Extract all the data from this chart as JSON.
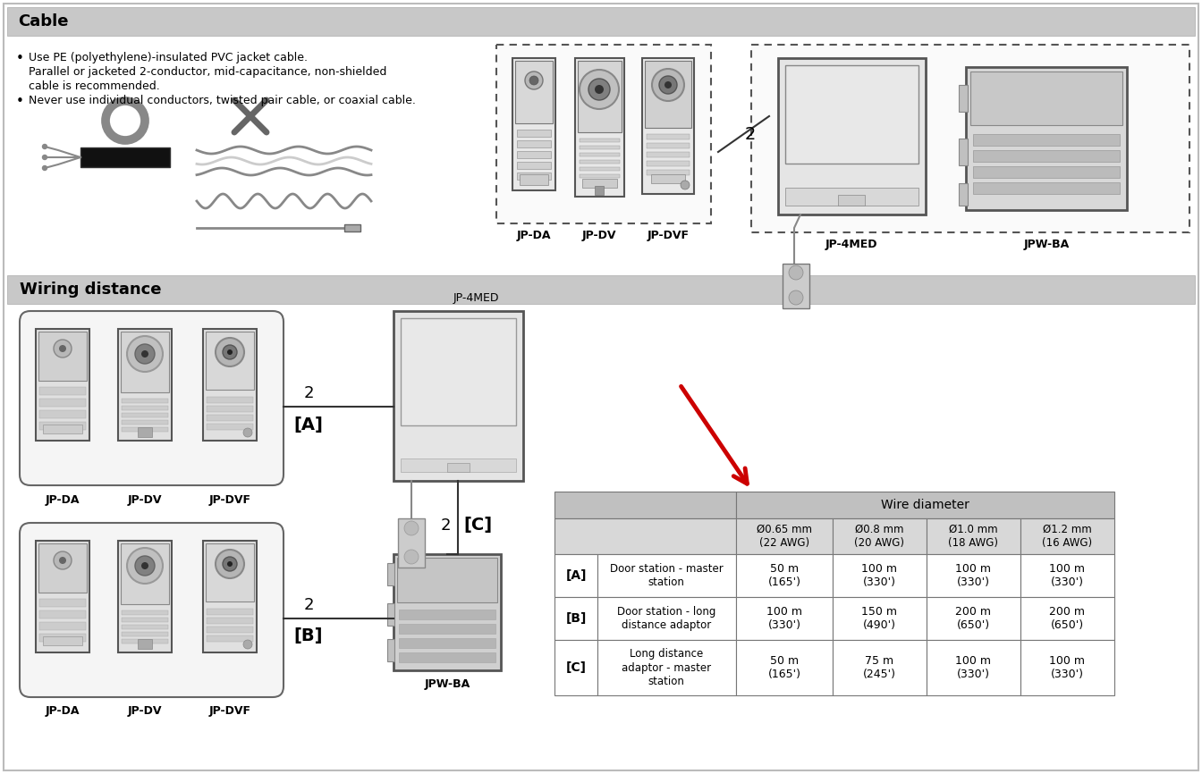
{
  "bg_color": "#ffffff",
  "section_header_bg": "#c8c8c8",
  "cable_title": "Cable",
  "wiring_title": "Wiring distance",
  "bullet1_line1": "Use PE (polyethylene)-insulated PVC jacket cable.",
  "bullet1_line2": "Parallel or jacketed 2-conductor, mid-capacitance, non-shielded",
  "bullet1_line3": "cable is recommended.",
  "bullet2": "Never use individual conductors, twisted pair cable, or coaxial cable.",
  "table_header_bg": "#c0c0c0",
  "table_subheader_bg": "#d8d8d8",
  "table_wire_diameter": "Wire diameter",
  "table_col_headers": [
    "Ø0.65 mm\n(22 AWG)",
    "Ø0.8 mm\n(20 AWG)",
    "Ø1.0 mm\n(18 AWG)",
    "Ø1.2 mm\n(16 AWG)"
  ],
  "table_rows": [
    {
      "label": "[A]",
      "desc": "Door station - master\nstation",
      "vals": [
        "50 m\n(165')",
        "100 m\n(330')",
        "100 m\n(330')",
        "100 m\n(330')"
      ]
    },
    {
      "label": "[B]",
      "desc": "Door station - long\ndistance adaptor",
      "vals": [
        "100 m\n(330')",
        "150 m\n(490')",
        "200 m\n(650')",
        "200 m\n(650')"
      ]
    },
    {
      "label": "[C]",
      "desc": "Long distance\nadaptor - master\nstation",
      "vals": [
        "50 m\n(165')",
        "75 m\n(245')",
        "100 m\n(330')",
        "100 m\n(330')"
      ]
    }
  ],
  "arrow_color": "#cc0000",
  "top_devices_left": [
    "JP-DA",
    "JP-DV",
    "JP-DVF"
  ],
  "top_devices_right": [
    "JP-4MED",
    "JPW-BA"
  ],
  "wd_devices_upper": [
    "JP-DA",
    "JP-DV",
    "JP-DVF"
  ],
  "wd_devices_lower": [
    "JP-DA",
    "JP-DV",
    "JP-DVF"
  ]
}
